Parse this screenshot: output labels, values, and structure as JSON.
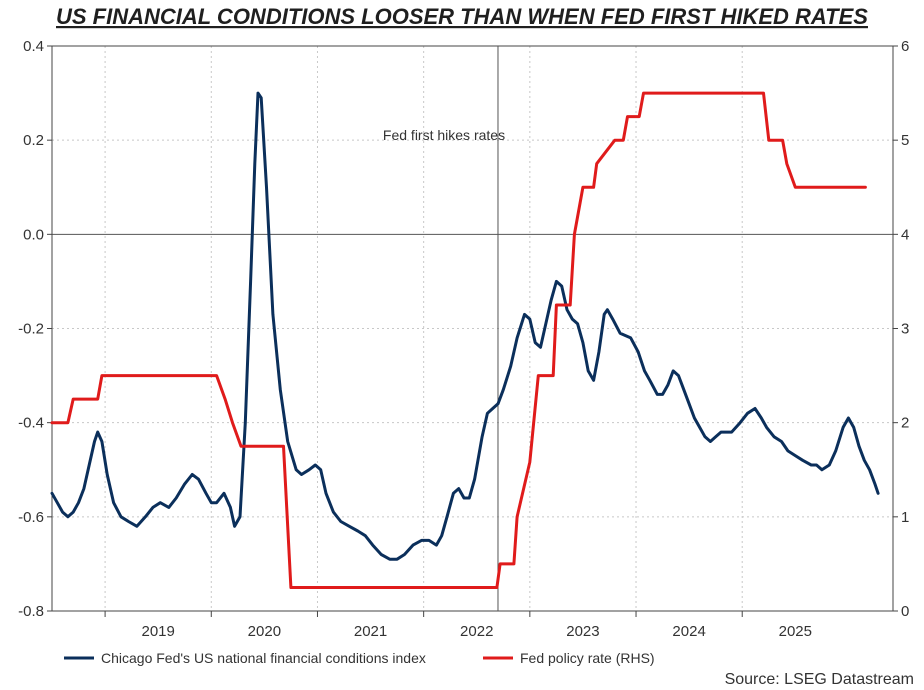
{
  "chart_data": {
    "type": "line",
    "title": "US FINANCIAL CONDITIONS LOOSER THAN WHEN FED FIRST HIKED RATES",
    "source": "Source: LSEG Datastream",
    "annotation": "Fed first hikes rates",
    "annotation_x": 2022.2,
    "x_ticks": [
      "2019",
      "2020",
      "2021",
      "2022",
      "2023",
      "2024",
      "2025"
    ],
    "xlim": [
      2018.0,
      2025.92
    ],
    "y_left": {
      "lim": [
        -0.8,
        0.4
      ],
      "ticks": [
        "0.4",
        "0.2",
        "0.0",
        "-0.2",
        "-0.4",
        "-0.6",
        "-0.8"
      ]
    },
    "y_right": {
      "lim": [
        0,
        6
      ],
      "ticks": [
        "6",
        "5",
        "4",
        "3",
        "2",
        "1",
        "0"
      ]
    },
    "grid": true,
    "legend_position": "bottom",
    "series": [
      {
        "name": "Chicago Fed's US national financial conditions index",
        "axis": "left",
        "color": "#0b2f5b",
        "points": [
          [
            2018.0,
            -0.55
          ],
          [
            2018.05,
            -0.57
          ],
          [
            2018.1,
            -0.59
          ],
          [
            2018.15,
            -0.6
          ],
          [
            2018.2,
            -0.59
          ],
          [
            2018.25,
            -0.57
          ],
          [
            2018.3,
            -0.54
          ],
          [
            2018.35,
            -0.49
          ],
          [
            2018.4,
            -0.44
          ],
          [
            2018.43,
            -0.42
          ],
          [
            2018.47,
            -0.44
          ],
          [
            2018.52,
            -0.51
          ],
          [
            2018.58,
            -0.57
          ],
          [
            2018.65,
            -0.6
          ],
          [
            2018.72,
            -0.61
          ],
          [
            2018.8,
            -0.62
          ],
          [
            2018.88,
            -0.6
          ],
          [
            2018.95,
            -0.58
          ],
          [
            2019.02,
            -0.57
          ],
          [
            2019.1,
            -0.58
          ],
          [
            2019.17,
            -0.56
          ],
          [
            2019.25,
            -0.53
          ],
          [
            2019.32,
            -0.51
          ],
          [
            2019.38,
            -0.52
          ],
          [
            2019.45,
            -0.55
          ],
          [
            2019.5,
            -0.57
          ],
          [
            2019.55,
            -0.57
          ],
          [
            2019.62,
            -0.55
          ],
          [
            2019.68,
            -0.58
          ],
          [
            2019.72,
            -0.62
          ],
          [
            2019.77,
            -0.6
          ],
          [
            2019.82,
            -0.4
          ],
          [
            2019.87,
            -0.1
          ],
          [
            2019.91,
            0.15
          ],
          [
            2019.94,
            0.3
          ],
          [
            2019.97,
            0.29
          ],
          [
            2020.02,
            0.1
          ],
          [
            2020.08,
            -0.17
          ],
          [
            2020.15,
            -0.33
          ],
          [
            2020.22,
            -0.44
          ],
          [
            2020.3,
            -0.5
          ],
          [
            2020.35,
            -0.51
          ],
          [
            2020.42,
            -0.5
          ],
          [
            2020.48,
            -0.49
          ],
          [
            2020.53,
            -0.5
          ],
          [
            2020.58,
            -0.55
          ],
          [
            2020.65,
            -0.59
          ],
          [
            2020.72,
            -0.61
          ],
          [
            2020.8,
            -0.62
          ],
          [
            2020.88,
            -0.63
          ],
          [
            2020.95,
            -0.64
          ],
          [
            2021.02,
            -0.66
          ],
          [
            2021.1,
            -0.68
          ],
          [
            2021.18,
            -0.69
          ],
          [
            2021.25,
            -0.69
          ],
          [
            2021.32,
            -0.68
          ],
          [
            2021.4,
            -0.66
          ],
          [
            2021.48,
            -0.65
          ],
          [
            2021.55,
            -0.65
          ],
          [
            2021.62,
            -0.66
          ],
          [
            2021.67,
            -0.64
          ],
          [
            2021.72,
            -0.6
          ],
          [
            2021.78,
            -0.55
          ],
          [
            2021.83,
            -0.54
          ],
          [
            2021.88,
            -0.56
          ],
          [
            2021.93,
            -0.56
          ],
          [
            2021.98,
            -0.52
          ],
          [
            2022.05,
            -0.43
          ],
          [
            2022.1,
            -0.38
          ],
          [
            2022.15,
            -0.37
          ],
          [
            2022.2,
            -0.36
          ],
          [
            2022.25,
            -0.33
          ],
          [
            2022.32,
            -0.28
          ],
          [
            2022.38,
            -0.22
          ],
          [
            2022.45,
            -0.17
          ],
          [
            2022.5,
            -0.18
          ],
          [
            2022.55,
            -0.23
          ],
          [
            2022.6,
            -0.24
          ],
          [
            2022.65,
            -0.19
          ],
          [
            2022.7,
            -0.14
          ],
          [
            2022.75,
            -0.1
          ],
          [
            2022.8,
            -0.11
          ],
          [
            2022.85,
            -0.16
          ],
          [
            2022.9,
            -0.18
          ],
          [
            2022.95,
            -0.19
          ],
          [
            2023.0,
            -0.23
          ],
          [
            2023.05,
            -0.29
          ],
          [
            2023.1,
            -0.31
          ],
          [
            2023.15,
            -0.25
          ],
          [
            2023.2,
            -0.17
          ],
          [
            2023.23,
            -0.16
          ],
          [
            2023.28,
            -0.18
          ],
          [
            2023.35,
            -0.21
          ],
          [
            2023.45,
            -0.22
          ],
          [
            2023.52,
            -0.25
          ],
          [
            2023.58,
            -0.29
          ],
          [
            2023.63,
            -0.31
          ],
          [
            2023.7,
            -0.34
          ],
          [
            2023.75,
            -0.34
          ],
          [
            2023.8,
            -0.32
          ],
          [
            2023.85,
            -0.29
          ],
          [
            2023.9,
            -0.3
          ],
          [
            2023.95,
            -0.33
          ],
          [
            2024.0,
            -0.36
          ],
          [
            2024.05,
            -0.39
          ],
          [
            2024.1,
            -0.41
          ],
          [
            2024.15,
            -0.43
          ],
          [
            2024.2,
            -0.44
          ],
          [
            2024.25,
            -0.43
          ],
          [
            2024.3,
            -0.42
          ],
          [
            2024.4,
            -0.42
          ],
          [
            2024.48,
            -0.4
          ],
          [
            2024.55,
            -0.38
          ],
          [
            2024.62,
            -0.37
          ],
          [
            2024.68,
            -0.39
          ],
          [
            2024.73,
            -0.41
          ],
          [
            2024.8,
            -0.43
          ],
          [
            2024.87,
            -0.44
          ],
          [
            2024.93,
            -0.46
          ],
          [
            2025.0,
            -0.47
          ],
          [
            2025.07,
            -0.48
          ],
          [
            2025.15,
            -0.49
          ],
          [
            2025.2,
            -0.49
          ],
          [
            2025.25,
            -0.5
          ],
          [
            2025.32,
            -0.49
          ],
          [
            2025.38,
            -0.46
          ],
          [
            2025.45,
            -0.41
          ],
          [
            2025.5,
            -0.39
          ],
          [
            2025.55,
            -0.41
          ],
          [
            2025.6,
            -0.45
          ],
          [
            2025.65,
            -0.48
          ],
          [
            2025.7,
            -0.5
          ],
          [
            2025.75,
            -0.53
          ],
          [
            2025.78,
            -0.55
          ]
        ]
      },
      {
        "name": "Fed policy rate (RHS)",
        "axis": "right",
        "color": "#e01b1b",
        "points": [
          [
            2018.0,
            2.0
          ],
          [
            2018.15,
            2.0
          ],
          [
            2018.2,
            2.25
          ],
          [
            2018.43,
            2.25
          ],
          [
            2018.47,
            2.5
          ],
          [
            2019.55,
            2.5
          ],
          [
            2019.63,
            2.25
          ],
          [
            2019.7,
            2.0
          ],
          [
            2019.78,
            1.75
          ],
          [
            2020.18,
            1.75
          ],
          [
            2020.25,
            0.25
          ],
          [
            2022.19,
            0.25
          ],
          [
            2022.22,
            0.5
          ],
          [
            2022.35,
            0.5
          ],
          [
            2022.38,
            1.0
          ],
          [
            2022.5,
            1.58
          ],
          [
            2022.58,
            2.5
          ],
          [
            2022.72,
            2.5
          ],
          [
            2022.75,
            3.25
          ],
          [
            2022.88,
            3.25
          ],
          [
            2022.92,
            4.0
          ],
          [
            2023.0,
            4.5
          ],
          [
            2023.1,
            4.5
          ],
          [
            2023.13,
            4.75
          ],
          [
            2023.3,
            5.0
          ],
          [
            2023.38,
            5.0
          ],
          [
            2023.42,
            5.25
          ],
          [
            2023.53,
            5.25
          ],
          [
            2023.57,
            5.5
          ],
          [
            2024.7,
            5.5
          ],
          [
            2024.75,
            5.0
          ],
          [
            2024.88,
            5.0
          ],
          [
            2024.92,
            4.75
          ],
          [
            2025.0,
            4.5
          ],
          [
            2025.66,
            4.5
          ]
        ]
      }
    ]
  }
}
